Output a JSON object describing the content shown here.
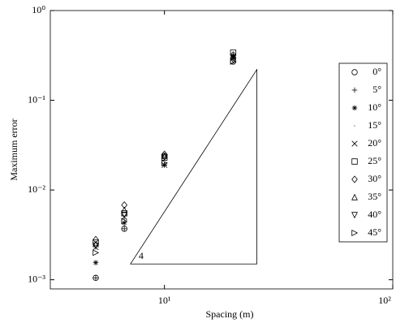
{
  "chart_data": {
    "type": "scatter",
    "xlabel": "Spacing (m)",
    "ylabel": "Maximum error",
    "log_x": true,
    "log_y": true,
    "xlim": [
      3.162,
      100
    ],
    "ylim": [
      0.00079,
      1
    ],
    "xticks": [
      {
        "value": 10,
        "label": "10¹"
      },
      {
        "value": 100,
        "label": "10²"
      }
    ],
    "yticks": [
      {
        "value": 0.001,
        "label": "10⁻³"
      },
      {
        "value": 0.01,
        "label": "10⁻²"
      },
      {
        "value": 0.1,
        "label": "10⁻¹"
      },
      {
        "value": 1,
        "label": "10⁰"
      }
    ],
    "legend": "right",
    "color": "#000000",
    "x": [
      5,
      6.67,
      10,
      20
    ],
    "series": [
      {
        "name": "0°",
        "marker": "circle",
        "values": [
          0.00105,
          0.0037,
          0.024,
          0.27
        ]
      },
      {
        "name": "5°",
        "marker": "plus",
        "values": [
          0.00105,
          0.0037,
          0.019,
          0.3
        ]
      },
      {
        "name": "10°",
        "marker": "star",
        "values": [
          0.00155,
          0.0043,
          0.019,
          0.31
        ]
      },
      {
        "name": "15°",
        "marker": "dot",
        "values": [
          0.0022,
          0.0048,
          0.02,
          0.3
        ]
      },
      {
        "name": "20°",
        "marker": "x",
        "values": [
          0.0023,
          0.005,
          0.019,
          0.3
        ]
      },
      {
        "name": "25°",
        "marker": "square",
        "values": [
          0.0026,
          0.0055,
          0.023,
          0.34
        ]
      },
      {
        "name": "30°",
        "marker": "diamond",
        "values": [
          0.0028,
          0.0068,
          0.025,
          0.32
        ]
      },
      {
        "name": "35°",
        "marker": "triangle-up",
        "values": [
          0.0025,
          0.006,
          0.024,
          0.31
        ]
      },
      {
        "name": "40°",
        "marker": "triangle-down",
        "values": [
          0.0024,
          0.0053,
          0.023,
          0.28
        ]
      },
      {
        "name": "45°",
        "marker": "triangle-right",
        "values": [
          0.002,
          0.0045,
          0.02,
          0.27
        ]
      }
    ],
    "slope_triangle": {
      "x": [
        7.1,
        25.4
      ],
      "y": [
        0.0015,
        0.22
      ],
      "label": "4"
    }
  }
}
